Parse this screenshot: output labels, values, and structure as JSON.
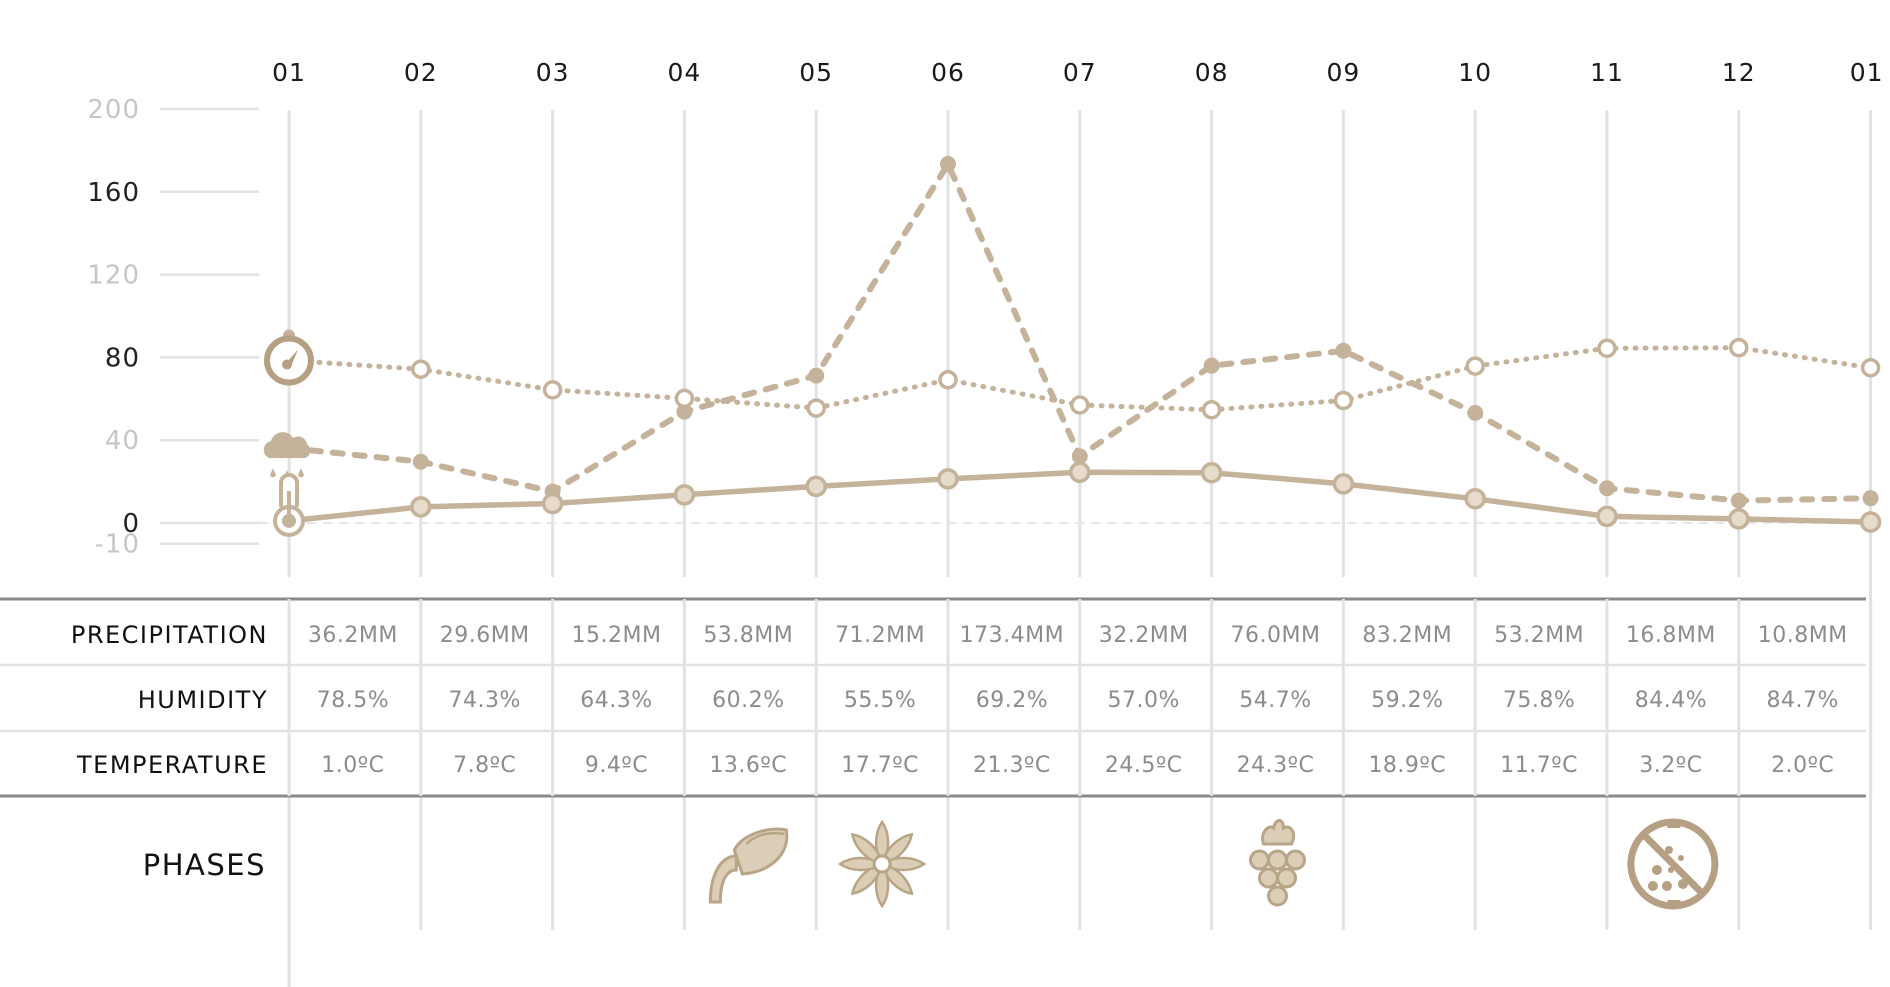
{
  "colors": {
    "series": "#c5b29a",
    "series_dark": "#b5a083",
    "icon_fill": "#dccdb6",
    "icon_stroke": "#b8a587",
    "grid": "#e2e2e2",
    "table_rule": "#8a8a8a",
    "ytick_light": "#c6c6c6",
    "ytick_dark": "#222222"
  },
  "months": [
    "01",
    "02",
    "03",
    "04",
    "05",
    "06",
    "07",
    "08",
    "09",
    "10",
    "11",
    "12",
    "01"
  ],
  "y_ticks": [
    {
      "label": "200",
      "value": 200,
      "emphasis": false
    },
    {
      "label": "160",
      "value": 160,
      "emphasis": true
    },
    {
      "label": "120",
      "value": 120,
      "emphasis": false
    },
    {
      "label": "80",
      "value": 80,
      "emphasis": true
    },
    {
      "label": "40",
      "value": 40,
      "emphasis": false
    },
    {
      "label": "0",
      "value": 0,
      "emphasis": true
    },
    {
      "label": "-10",
      "value": -10,
      "emphasis": false
    }
  ],
  "chart_data": {
    "type": "line",
    "x": [
      "01",
      "02",
      "03",
      "04",
      "05",
      "06",
      "07",
      "08",
      "09",
      "10",
      "11",
      "12",
      "01"
    ],
    "ylim": [
      -10,
      200
    ],
    "series": [
      {
        "key": "precipitation",
        "style": "dashed",
        "marker": "filled",
        "icon": "rain-cloud-icon",
        "values": [
          36.2,
          29.6,
          15.2,
          53.8,
          71.2,
          173.4,
          32.2,
          76.0,
          83.2,
          53.2,
          16.8,
          10.8,
          12.0
        ]
      },
      {
        "key": "humidity",
        "style": "dotted",
        "marker": "hollow",
        "icon": "gauge-icon",
        "values": [
          78.5,
          74.3,
          64.3,
          60.2,
          55.5,
          69.2,
          57.0,
          54.7,
          59.2,
          75.8,
          84.4,
          84.7,
          75.0
        ]
      },
      {
        "key": "temperature",
        "style": "solid",
        "marker": "filled-hollow",
        "icon": "thermometer-icon",
        "values": [
          1.0,
          7.8,
          9.4,
          13.6,
          17.7,
          21.3,
          24.5,
          24.3,
          18.9,
          11.7,
          3.2,
          2.0,
          0.5
        ]
      }
    ]
  },
  "table": {
    "rows": [
      {
        "label": "PRECIPITATION",
        "cells": [
          "36.2MM",
          "29.6MM",
          "15.2MM",
          "53.8MM",
          "71.2MM",
          "173.4MM",
          "32.2MM",
          "76.0MM",
          "83.2MM",
          "53.2MM",
          "16.8MM",
          "10.8MM"
        ]
      },
      {
        "label": "HUMIDITY",
        "cells": [
          "78.5%",
          "74.3%",
          "64.3%",
          "60.2%",
          "55.5%",
          "69.2%",
          "57.0%",
          "54.7%",
          "59.2%",
          "75.8%",
          "84.4%",
          "84.7%"
        ]
      },
      {
        "label": "TEMPERATURE",
        "cells": [
          "1.0ºC",
          "7.8ºC",
          "9.4ºC",
          "13.6ºC",
          "17.7ºC",
          "21.3ºC",
          "24.5ºC",
          "24.3ºC",
          "18.9ºC",
          "11.7ºC",
          "3.2ºC",
          "2.0ºC"
        ]
      }
    ],
    "phases_label": "PHASES",
    "phases": [
      {
        "month_index": 3,
        "icon": "budburst-icon"
      },
      {
        "month_index": 4,
        "icon": "flowering-icon"
      },
      {
        "month_index": 7,
        "icon": "grape-cluster-icon"
      },
      {
        "month_index": 10,
        "icon": "no-harvest-icon"
      }
    ]
  }
}
